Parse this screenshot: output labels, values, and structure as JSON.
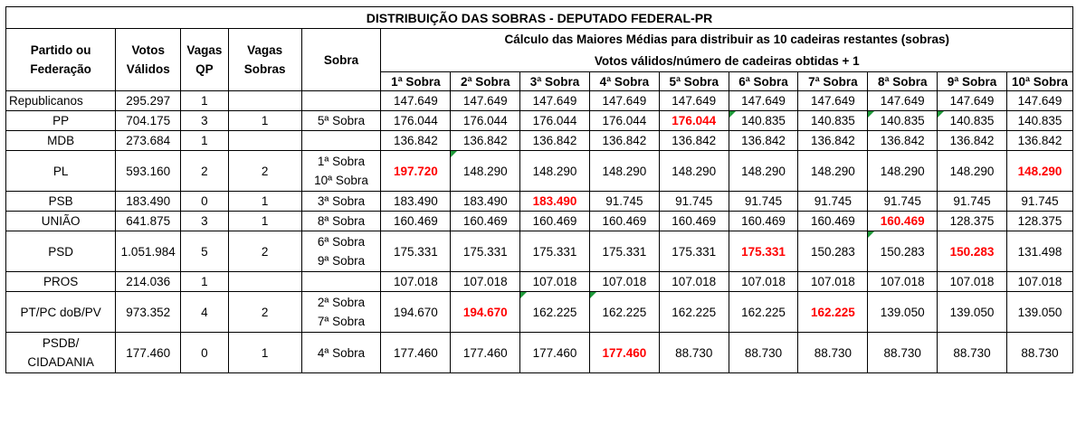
{
  "title": "DISTRIBUIÇÃO DAS SOBRAS - DEPUTADO FEDERAL-PR",
  "headers": {
    "partido": [
      "Partido ou",
      "Federação"
    ],
    "votos": [
      "Votos",
      "Válidos"
    ],
    "vagas_qp": [
      "Vagas",
      "QP"
    ],
    "vagas_sobras": [
      "Vagas",
      "Sobras"
    ],
    "sobra": "Sobra",
    "calc_line1": "Cálculo das Maiores Médias para distribuir as 10 cadeiras restantes (sobras)",
    "calc_line2": "Votos válidos/número de cadeiras obtidas + 1",
    "rounds": [
      "1ª Sobra",
      "2ª Sobra",
      "3ª Sobra",
      "4ª Sobra",
      "5ª Sobra",
      "6ª Sobra",
      "7ª Sobra",
      "8ª Sobra",
      "9ª Sobra",
      "10ª Sobra"
    ]
  },
  "rows": [
    {
      "party": [
        "Republicanos"
      ],
      "votes": "295.297",
      "qp": "1",
      "sobras": "",
      "sobra": [],
      "values": [
        "147.649",
        "147.649",
        "147.649",
        "147.649",
        "147.649",
        "147.649",
        "147.649",
        "147.649",
        "147.649",
        "147.649"
      ],
      "highlight": [],
      "triangles": [],
      "tall": false
    },
    {
      "party": [
        "PP"
      ],
      "votes": "704.175",
      "qp": "3",
      "sobras": "1",
      "sobra": [
        "5ª Sobra"
      ],
      "values": [
        "176.044",
        "176.044",
        "176.044",
        "176.044",
        "176.044",
        "140.835",
        "140.835",
        "140.835",
        "140.835",
        "140.835"
      ],
      "highlight": [
        4
      ],
      "triangles": [
        5,
        7,
        8
      ],
      "tall": false
    },
    {
      "party": [
        "MDB"
      ],
      "votes": "273.684",
      "qp": "1",
      "sobras": "",
      "sobra": [],
      "values": [
        "136.842",
        "136.842",
        "136.842",
        "136.842",
        "136.842",
        "136.842",
        "136.842",
        "136.842",
        "136.842",
        "136.842"
      ],
      "highlight": [],
      "triangles": [],
      "tall": false
    },
    {
      "party": [
        "PL"
      ],
      "votes": "593.160",
      "qp": "2",
      "sobras": "2",
      "sobra": [
        "1ª Sobra",
        "10ª Sobra"
      ],
      "values": [
        "197.720",
        "148.290",
        "148.290",
        "148.290",
        "148.290",
        "148.290",
        "148.290",
        "148.290",
        "148.290",
        "148.290"
      ],
      "highlight": [
        0,
        9
      ],
      "triangles": [
        1
      ],
      "tall": true
    },
    {
      "party": [
        "PSB"
      ],
      "votes": "183.490",
      "qp": "0",
      "sobras": "1",
      "sobra": [
        "3ª Sobra"
      ],
      "values": [
        "183.490",
        "183.490",
        "183.490",
        "91.745",
        "91.745",
        "91.745",
        "91.745",
        "91.745",
        "91.745",
        "91.745"
      ],
      "highlight": [
        2
      ],
      "triangles": [],
      "tall": false
    },
    {
      "party": [
        "UNIÃO"
      ],
      "votes": "641.875",
      "qp": "3",
      "sobras": "1",
      "sobra": [
        "8ª Sobra"
      ],
      "values": [
        "160.469",
        "160.469",
        "160.469",
        "160.469",
        "160.469",
        "160.469",
        "160.469",
        "160.469",
        "128.375",
        "128.375"
      ],
      "highlight": [
        7
      ],
      "triangles": [],
      "tall": false
    },
    {
      "party": [
        "PSD"
      ],
      "votes": "1.051.984",
      "qp": "5",
      "sobras": "2",
      "sobra": [
        "6ª Sobra",
        "9ª Sobra"
      ],
      "values": [
        "175.331",
        "175.331",
        "175.331",
        "175.331",
        "175.331",
        "175.331",
        "150.283",
        "150.283",
        "150.283",
        "131.498"
      ],
      "highlight": [
        5,
        8
      ],
      "triangles": [
        7
      ],
      "tall": true
    },
    {
      "party": [
        "PROS"
      ],
      "votes": "214.036",
      "qp": "1",
      "sobras": "",
      "sobra": [],
      "values": [
        "107.018",
        "107.018",
        "107.018",
        "107.018",
        "107.018",
        "107.018",
        "107.018",
        "107.018",
        "107.018",
        "107.018"
      ],
      "highlight": [],
      "triangles": [],
      "tall": false
    },
    {
      "party": [
        "PT/PC doB/PV"
      ],
      "votes": "973.352",
      "qp": "4",
      "sobras": "2",
      "sobra": [
        "2ª Sobra",
        "7ª Sobra"
      ],
      "values": [
        "194.670",
        "194.670",
        "162.225",
        "162.225",
        "162.225",
        "162.225",
        "162.225",
        "139.050",
        "139.050",
        "139.050"
      ],
      "highlight": [
        1,
        6
      ],
      "triangles": [
        2,
        3
      ],
      "tall": true
    },
    {
      "party": [
        "PSDB/",
        "CIDADANIA"
      ],
      "votes": "177.460",
      "qp": "0",
      "sobras": "1",
      "sobra": [
        "4ª Sobra"
      ],
      "values": [
        "177.460",
        "177.460",
        "177.460",
        "177.460",
        "88.730",
        "88.730",
        "88.730",
        "88.730",
        "88.730",
        "88.730"
      ],
      "highlight": [
        3
      ],
      "triangles": [],
      "tall": true
    }
  ],
  "colors": {
    "highlight": "#ff0000",
    "triangle": "#1f9a3a",
    "border": "#000000"
  }
}
